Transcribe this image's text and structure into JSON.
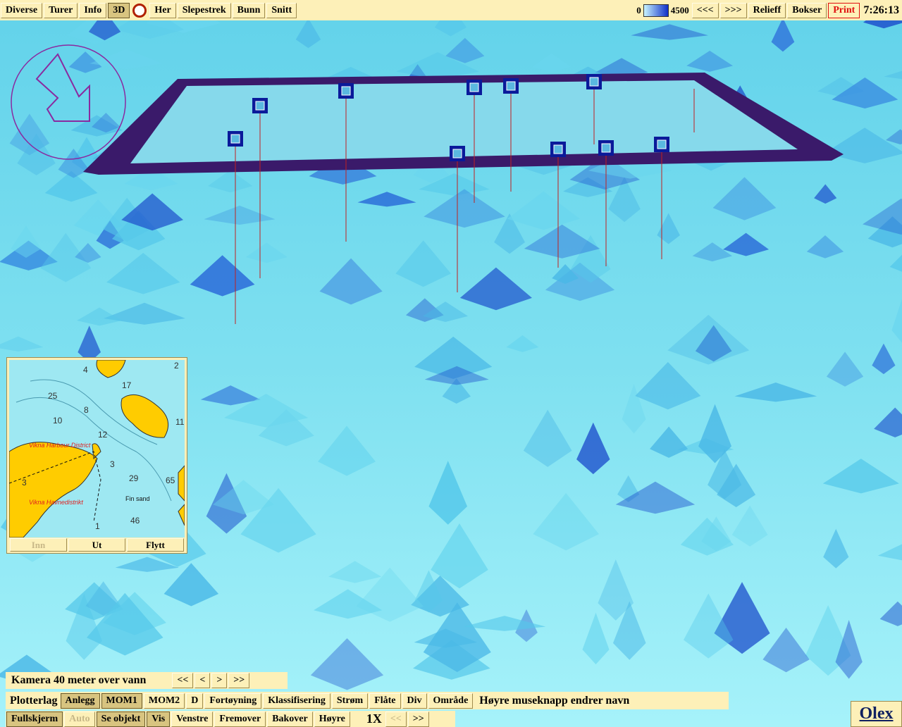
{
  "toolbar": {
    "left": [
      "Diverse",
      "Turer",
      "Info",
      "3D"
    ],
    "left2": [
      "Her",
      "Slepestrek",
      "Bunn",
      "Snitt"
    ],
    "depth_scale": {
      "min": "0",
      "max": "4500"
    },
    "right": [
      "<<<",
      ">>>",
      "Relieff",
      "Bokser",
      "Print"
    ],
    "time": "7:26:13"
  },
  "minimap": {
    "depths": [
      "4",
      "25",
      "8",
      "10",
      "12",
      "3",
      "29",
      "46",
      "1",
      "65",
      "11",
      "2",
      "17",
      "3"
    ],
    "places": [
      "Vikna Harbour District",
      "Vikna Havnedistrikt",
      "Fin sand"
    ],
    "buttons": [
      "Inn",
      "Ut",
      "Flytt"
    ]
  },
  "camera": {
    "label": "Kamera 40 meter over vann",
    "buttons": [
      "<<",
      "<",
      ">",
      ">>"
    ]
  },
  "layers": {
    "label": "Plotterlag",
    "buttons": [
      "Anlegg",
      "MOM1",
      "MOM2",
      "D",
      "Fortøyning",
      "Klassifisering",
      "Strøm",
      "Flåte",
      "Div",
      "Område"
    ],
    "hint": "Høyre museknapp endrer navn"
  },
  "controls": {
    "buttons": [
      "Fullskjerm",
      "Auto",
      "Se objekt",
      "Vis",
      "Venstre",
      "Fremover",
      "Bakover",
      "Høyre"
    ],
    "zoom": "1X",
    "zoom_buttons": [
      "<<",
      ">>"
    ]
  },
  "brand": "Olex"
}
